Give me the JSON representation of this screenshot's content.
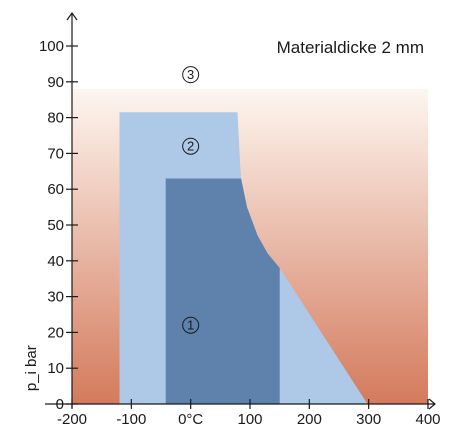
{
  "chart_data": {
    "type": "area",
    "title": "Materialdicke 2 mm",
    "xlabel": "",
    "ylabel": "p_i bar",
    "xlim": [
      -200,
      400
    ],
    "ylim": [
      0,
      100
    ],
    "x_ticks": [
      -200,
      -100,
      0,
      100,
      200,
      300,
      400
    ],
    "x_tick_labels": [
      "-200",
      "-100",
      "0°C",
      "100",
      "200",
      "300",
      "400"
    ],
    "y_ticks": [
      0,
      10,
      20,
      30,
      40,
      50,
      60,
      70,
      80,
      90,
      100
    ],
    "y_tick_labels": [
      "0",
      "10",
      "20",
      "30",
      "40",
      "50",
      "60",
      "70",
      "80",
      "90",
      "100"
    ],
    "background_gradient": {
      "top": "#fdf6f0",
      "bottom": "#d47a5c"
    },
    "zones": [
      {
        "label": "③",
        "label_at": [
          0,
          92
        ],
        "color": "",
        "points": []
      },
      {
        "label": "②",
        "label_at": [
          0,
          72
        ],
        "color": "#aec8e8",
        "points": [
          [
            -120,
            0
          ],
          [
            -120,
            81.5
          ],
          [
            79,
            81.5
          ],
          [
            83,
            68
          ],
          [
            85,
            63
          ],
          [
            95,
            55
          ],
          [
            113,
            47
          ],
          [
            130,
            42
          ],
          [
            150,
            38
          ],
          [
            298,
            0
          ]
        ]
      },
      {
        "label": "①",
        "label_at": [
          0,
          22
        ],
        "color": "#5e82ab",
        "points": [
          [
            -42,
            0
          ],
          [
            -42,
            63
          ],
          [
            85,
            63
          ],
          [
            95,
            55
          ],
          [
            113,
            47
          ],
          [
            130,
            42
          ],
          [
            150,
            38
          ],
          [
            150,
            0
          ]
        ]
      }
    ]
  }
}
